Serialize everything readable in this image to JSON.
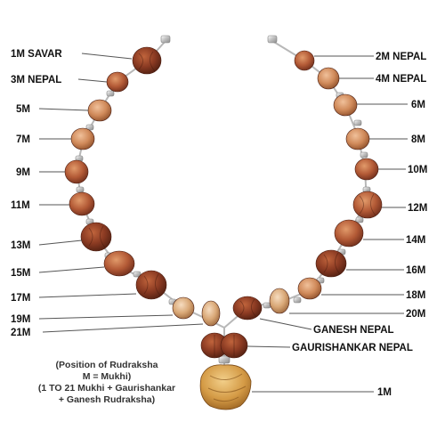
{
  "labels": {
    "m1_savar": "1M SAVAR",
    "m2_nepal": "2M NEPAL",
    "m3_nepal": "3M NEPAL",
    "m4_nepal": "4M NEPAL",
    "m5": "5M",
    "m6": "6M",
    "m7": "7M",
    "m8": "8M",
    "m9": "9M",
    "m10": "10M",
    "m11": "11M",
    "m12": "12M",
    "m13": "13M",
    "m14": "14M",
    "m15": "15M",
    "m16": "16M",
    "m17": "17M",
    "m18": "18M",
    "m19": "19M",
    "m20": "20M",
    "m21": "21M",
    "ganesh_nepal": "GANESH NEPAL",
    "gaurishankar_nepal": "GAURISHANKAR NEPAL",
    "m1_pendant": "1M"
  },
  "note": {
    "line1": "(Position of Rudraksha",
    "line2": "M = Mukhi)",
    "line3": "(1 TO 21 Mukhi + Gaurishankar",
    "line4": "+ Ganesh Rudraksha)"
  },
  "colors": {
    "bead_dark": "#8a3a22",
    "bead_mid": "#b35a36",
    "bead_light": "#d08a5a",
    "bead_tan": "#d9a877",
    "silver": "#c9c9c9",
    "pendant": "#d49a45",
    "line": "#555555"
  }
}
